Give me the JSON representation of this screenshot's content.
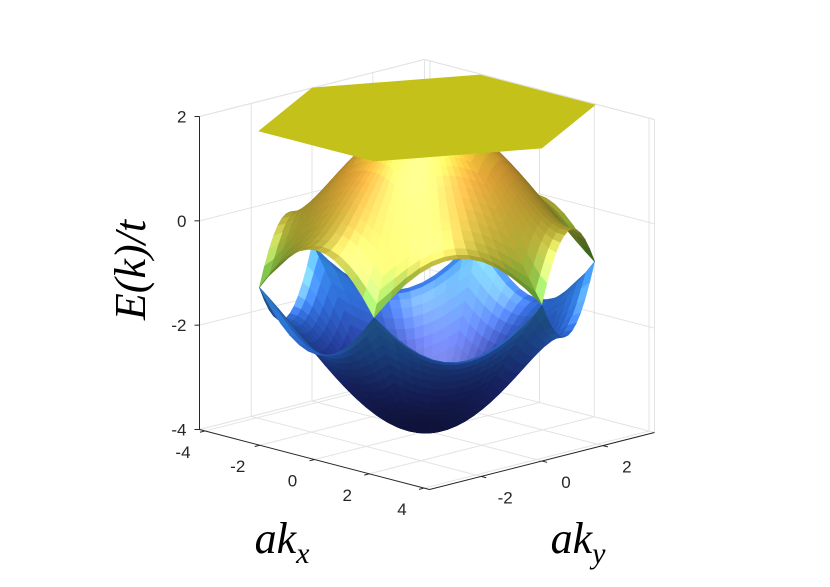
{
  "chart_data": {
    "type": "surface",
    "zlabel": "E(k)/t",
    "xlabel": {
      "base": "ak",
      "sub": "x"
    },
    "ylabel": {
      "base": "ak",
      "sub": "y"
    },
    "xlim": [
      -4.2,
      4.2
    ],
    "ylim": [
      -3.7,
      3.7
    ],
    "zlim": [
      -4,
      2
    ],
    "xticks": [
      -4,
      -2,
      0,
      2,
      4
    ],
    "yticks": [
      -2,
      0,
      2
    ],
    "zticks": [
      -4,
      -2,
      0,
      2
    ],
    "grid": true,
    "surfaces": [
      {
        "zlim": [
          -4,
          -1
        ]
      },
      {
        "zlim": [
          -1,
          2
        ]
      },
      {
        "zlim": [
          2,
          2
        ],
        "color": "#c4c21a"
      }
    ]
  }
}
